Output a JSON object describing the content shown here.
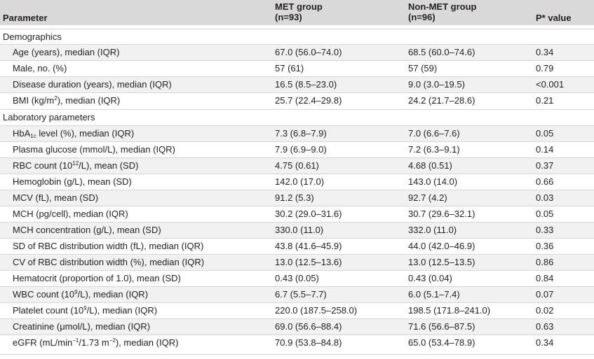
{
  "header": {
    "parameter": "Parameter",
    "met_group": "MET group",
    "met_n": "(n=93)",
    "nonmet_group": "Non-MET group",
    "nonmet_n": "(n=96)",
    "p_value": "P* value"
  },
  "sections": {
    "demographics": "Demographics",
    "laboratory": "Laboratory parameters"
  },
  "rows": {
    "age": {
      "label": "Age (years), median (IQR)",
      "met": "67.0 (56.0–74.0)",
      "non": "68.5 (60.0–74.6)",
      "p": "0.34"
    },
    "male": {
      "label": "Male, no. (%)",
      "met": "57 (61)",
      "non": "57 (59)",
      "p": "0.79"
    },
    "duration": {
      "label": "Disease duration (years), median (IQR)",
      "met": "16.5 (8.5–23.0)",
      "non": "9.0 (3.0–19.5)",
      "p": "<0.001"
    },
    "bmi": {
      "label_a": "BMI (kg/m",
      "label_sup": "2",
      "label_b": "), median (IQR)",
      "met": "25.7 (22.4–29.8)",
      "non": "24.2 (21.7–28.6)",
      "p": "0.21"
    },
    "hba1c": {
      "label_a": "HbA",
      "label_sub": "1c",
      "label_b": " level (%), median (IQR)",
      "met": "7.3 (6.8–7.9)",
      "non": "7.0 (6.6–7.6)",
      "p": "0.05"
    },
    "glucose": {
      "label": "Plasma glucose (mmol/L), median (IQR)",
      "met": "7.9 (6.9–9.0)",
      "non": "7.2 (6.3–9.1)",
      "p": "0.14"
    },
    "rbc": {
      "label_a": "RBC count (10",
      "label_sup": "12",
      "label_b": "/L), mean (SD)",
      "met": "4.75 (0.61)",
      "non": "4.68 (0.51)",
      "p": "0.37"
    },
    "hemoglobin": {
      "label": "Hemoglobin (g/L), mean (SD)",
      "met": "142.0 (17.0)",
      "non": "143.0 (14.0)",
      "p": "0.66"
    },
    "mcv": {
      "label": "MCV (fL), mean (SD)",
      "met": "91.2 (5.3)",
      "non": "92.7 (4.2)",
      "p": "0.03"
    },
    "mch": {
      "label": "MCH (pg/cell), median (IQR)",
      "met": "30.2 (29.0–31.6)",
      "non": "30.7 (29.6–32.1)",
      "p": "0.05"
    },
    "mchc": {
      "label": "MCH concentration (g/L), mean (SD)",
      "met": "330.0 (11.0)",
      "non": "332.0 (11.0)",
      "p": "0.33"
    },
    "sd_rdw": {
      "label": "SD of RBC distribution width (fL), median (IQR)",
      "met": "43.8 (41.6–45.9)",
      "non": "44.0 (42.0–46.9)",
      "p": "0.36"
    },
    "cv_rdw": {
      "label": "CV of RBC distribution width (%), median (IQR)",
      "met": "13.0 (12.5–13.6)",
      "non": "13.0 (12.5–13.5)",
      "p": "0.86"
    },
    "hematocrit": {
      "label": "Hematocrit (proportion of 1.0), mean (SD)",
      "met": "0.43 (0.05)",
      "non": "0.43 (0.04)",
      "p": "0.84"
    },
    "wbc": {
      "label_a": "WBC count (10",
      "label_sup": "9",
      "label_b": "/L), median (IQR)",
      "met": "6.7 (5.5–7.7)",
      "non": "6.0 (5.1–7.4)",
      "p": "0.07"
    },
    "platelet": {
      "label_a": "Platelet count (10",
      "label_sup": "9",
      "label_b": "/L), median (IQR)",
      "met": "220.0 (187.5–258.0)",
      "non": "198.5 (171.8–241.0)",
      "p": "0.02"
    },
    "creatinine": {
      "label": "Creatinine (μmol/L), median (IQR)",
      "met": "69.0 (56.6–88.4)",
      "non": "71.6 (56.6–87.5)",
      "p": "0.63"
    },
    "egfr": {
      "label_a": "eGFR (mL/min",
      "label_sup": "−1",
      "label_b": "/1.73 m",
      "label_sup2": "−2",
      "label_c": "), median (IQR)",
      "met": "70.9 (53.8–84.8)",
      "non": "65.0 (53.4–78.9)",
      "p": "0.34"
    }
  }
}
